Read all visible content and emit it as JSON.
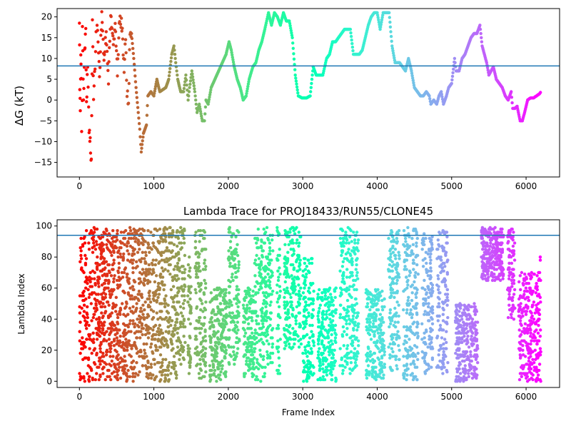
{
  "chart_data": [
    {
      "type": "scatter",
      "title": "",
      "xlabel": "",
      "ylabel": "ΔG (kT)",
      "xlim": [
        -300,
        6450
      ],
      "ylim": [
        -18.5,
        22
      ],
      "xticks": [
        0,
        1000,
        2000,
        3000,
        4000,
        5000,
        6000
      ],
      "xtick_labels": [
        "0",
        "1000",
        "2000",
        "3000",
        "4000",
        "5000",
        "6000"
      ],
      "yticks": [
        -15,
        -10,
        -5,
        0,
        5,
        10,
        15,
        20
      ],
      "ytick_labels": [
        "−15",
        "−10",
        "−5",
        "0",
        "5",
        "10",
        "15",
        "20"
      ],
      "hline": 8.2,
      "colormap": "rainbow (red at frame 0 → violet at frame 6200)",
      "grid": false,
      "trace": [
        [
          0,
          20
        ],
        [
          5,
          4
        ],
        [
          12,
          -4
        ],
        [
          18,
          12
        ],
        [
          25,
          5
        ],
        [
          35,
          -17.5
        ],
        [
          40,
          18
        ],
        [
          55,
          -1
        ],
        [
          70,
          13
        ],
        [
          85,
          16
        ],
        [
          95,
          -1.5
        ],
        [
          110,
          9
        ],
        [
          130,
          -8
        ],
        [
          145,
          -10
        ],
        [
          160,
          -15
        ],
        [
          175,
          19
        ],
        [
          190,
          1
        ],
        [
          210,
          8
        ],
        [
          230,
          21
        ],
        [
          250,
          14
        ],
        [
          270,
          6
        ],
        [
          300,
          20
        ],
        [
          330,
          10
        ],
        [
          360,
          16
        ],
        [
          390,
          5
        ],
        [
          420,
          21
        ],
        [
          450,
          14
        ],
        [
          480,
          17
        ],
        [
          510,
          7
        ],
        [
          540,
          20
        ],
        [
          570,
          18
        ],
        [
          600,
          8
        ],
        [
          620,
          14
        ],
        [
          640,
          2
        ],
        [
          660,
          -1
        ],
        [
          680,
          17
        ],
        [
          700,
          16
        ],
        [
          730,
          10
        ],
        [
          760,
          3
        ],
        [
          790,
          -3
        ],
        [
          810,
          -7
        ],
        [
          830,
          -12.5
        ],
        [
          860,
          -8
        ],
        [
          900,
          -6
        ],
        [
          920,
          1
        ],
        [
          960,
          2
        ],
        [
          1000,
          1
        ],
        [
          1040,
          5
        ],
        [
          1080,
          2
        ],
        [
          1120,
          2.5
        ],
        [
          1160,
          3
        ],
        [
          1200,
          5
        ],
        [
          1240,
          11
        ],
        [
          1270,
          13
        ],
        [
          1300,
          8
        ],
        [
          1320,
          5
        ],
        [
          1360,
          2
        ],
        [
          1400,
          2
        ],
        [
          1430,
          6
        ],
        [
          1460,
          0
        ],
        [
          1480,
          3
        ],
        [
          1510,
          7
        ],
        [
          1550,
          2
        ],
        [
          1580,
          -3
        ],
        [
          1610,
          -1
        ],
        [
          1650,
          -5
        ],
        [
          1680,
          -5
        ],
        [
          1700,
          0
        ],
        [
          1730,
          -1
        ],
        [
          1770,
          3
        ],
        [
          1820,
          5
        ],
        [
          1870,
          7
        ],
        [
          1920,
          9
        ],
        [
          1970,
          11
        ],
        [
          2010,
          14
        ],
        [
          2040,
          12
        ],
        [
          2080,
          8
        ],
        [
          2120,
          5
        ],
        [
          2160,
          3
        ],
        [
          2200,
          0
        ],
        [
          2240,
          1
        ],
        [
          2280,
          5
        ],
        [
          2330,
          8
        ],
        [
          2370,
          9
        ],
        [
          2410,
          12
        ],
        [
          2450,
          14
        ],
        [
          2490,
          17
        ],
        [
          2540,
          21
        ],
        [
          2580,
          18
        ],
        [
          2620,
          21
        ],
        [
          2660,
          20
        ],
        [
          2700,
          18
        ],
        [
          2740,
          21
        ],
        [
          2780,
          19
        ],
        [
          2820,
          19
        ],
        [
          2860,
          15
        ],
        [
          2900,
          6
        ],
        [
          2940,
          1
        ],
        [
          2990,
          0.5
        ],
        [
          3050,
          0.5
        ],
        [
          3100,
          1
        ],
        [
          3140,
          8
        ],
        [
          3180,
          6
        ],
        [
          3220,
          6
        ],
        [
          3270,
          6
        ],
        [
          3320,
          10
        ],
        [
          3360,
          11
        ],
        [
          3400,
          14
        ],
        [
          3440,
          14
        ],
        [
          3480,
          15
        ],
        [
          3520,
          16
        ],
        [
          3560,
          17
        ],
        [
          3600,
          17
        ],
        [
          3640,
          17
        ],
        [
          3680,
          11
        ],
        [
          3720,
          11
        ],
        [
          3760,
          11
        ],
        [
          3800,
          12
        ],
        [
          3840,
          15
        ],
        [
          3880,
          18
        ],
        [
          3920,
          20
        ],
        [
          3960,
          21
        ],
        [
          4000,
          21
        ],
        [
          4040,
          17
        ],
        [
          4080,
          21
        ],
        [
          4120,
          21
        ],
        [
          4160,
          21
        ],
        [
          4200,
          13
        ],
        [
          4240,
          9
        ],
        [
          4300,
          9
        ],
        [
          4340,
          8
        ],
        [
          4380,
          7
        ],
        [
          4420,
          10
        ],
        [
          4460,
          7
        ],
        [
          4500,
          3
        ],
        [
          4540,
          2
        ],
        [
          4580,
          1
        ],
        [
          4620,
          1
        ],
        [
          4660,
          2
        ],
        [
          4700,
          1
        ],
        [
          4720,
          -1
        ],
        [
          4760,
          0
        ],
        [
          4800,
          -1
        ],
        [
          4830,
          1
        ],
        [
          4860,
          2
        ],
        [
          4890,
          -1
        ],
        [
          4930,
          1
        ],
        [
          4960,
          3
        ],
        [
          5000,
          4
        ],
        [
          5040,
          10
        ],
        [
          5060,
          7
        ],
        [
          5100,
          7
        ],
        [
          5140,
          10
        ],
        [
          5180,
          11
        ],
        [
          5220,
          13
        ],
        [
          5260,
          15
        ],
        [
          5300,
          16
        ],
        [
          5340,
          16
        ],
        [
          5380,
          18
        ],
        [
          5410,
          13
        ],
        [
          5440,
          11
        ],
        [
          5470,
          9
        ],
        [
          5500,
          6
        ],
        [
          5530,
          7
        ],
        [
          5560,
          8
        ],
        [
          5600,
          5
        ],
        [
          5640,
          4
        ],
        [
          5680,
          3
        ],
        [
          5720,
          1
        ],
        [
          5760,
          0
        ],
        [
          5800,
          2
        ],
        [
          5820,
          -2
        ],
        [
          5850,
          -2
        ],
        [
          5880,
          -1.5
        ],
        [
          5920,
          -5
        ],
        [
          5950,
          -5
        ],
        [
          5980,
          -3
        ],
        [
          6020,
          0
        ],
        [
          6060,
          0.5
        ],
        [
          6100,
          0.5
        ],
        [
          6140,
          1
        ],
        [
          6180,
          1.5
        ],
        [
          6200,
          2
        ]
      ]
    },
    {
      "type": "scatter",
      "title": "Lambda Trace for PROJ18433/RUN55/CLONE45",
      "xlabel": "Frame Index",
      "ylabel": "Lambda Index",
      "xlim": [
        -300,
        6450
      ],
      "ylim": [
        -4,
        104
      ],
      "xticks": [
        0,
        1000,
        2000,
        3000,
        4000,
        5000,
        6000
      ],
      "xtick_labels": [
        "0",
        "1000",
        "2000",
        "3000",
        "4000",
        "5000",
        "6000"
      ],
      "yticks": [
        0,
        20,
        40,
        60,
        80,
        100
      ],
      "ytick_labels": [
        "0",
        "20",
        "40",
        "60",
        "80",
        "100"
      ],
      "hline": 94,
      "colormap": "rainbow (red at frame 0 → violet at frame 6200)",
      "grid": false,
      "frame_range": [
        0,
        6200
      ],
      "lambda_range": [
        0,
        99
      ],
      "bands": [
        [
          0,
          650,
          0,
          99
        ],
        [
          650,
          750,
          0,
          99
        ],
        [
          750,
          950,
          2,
          99
        ],
        [
          950,
          1200,
          0,
          99
        ],
        [
          1200,
          1320,
          0,
          99
        ],
        [
          1320,
          1420,
          10,
          99
        ],
        [
          1450,
          1500,
          5,
          80
        ],
        [
          1550,
          1700,
          0,
          99
        ],
        [
          1750,
          1980,
          0,
          60
        ],
        [
          2000,
          2150,
          10,
          99
        ],
        [
          2200,
          2350,
          0,
          60
        ],
        [
          2350,
          2500,
          0,
          99
        ],
        [
          2500,
          2600,
          10,
          99
        ],
        [
          2650,
          2700,
          5,
          99
        ],
        [
          2750,
          2980,
          20,
          99
        ],
        [
          3000,
          3150,
          0,
          80
        ],
        [
          3200,
          3450,
          0,
          60
        ],
        [
          3500,
          3750,
          5,
          99
        ],
        [
          3850,
          4100,
          0,
          60
        ],
        [
          4150,
          4300,
          5,
          99
        ],
        [
          4350,
          4550,
          0,
          99
        ],
        [
          4600,
          4750,
          5,
          95
        ],
        [
          4800,
          4950,
          5,
          99
        ],
        [
          5050,
          5350,
          0,
          50
        ],
        [
          5400,
          5700,
          65,
          99
        ],
        [
          5750,
          5850,
          40,
          99
        ],
        [
          5900,
          6150,
          0,
          70
        ],
        [
          6150,
          6200,
          0,
          80
        ]
      ],
      "points": 6200
    }
  ]
}
